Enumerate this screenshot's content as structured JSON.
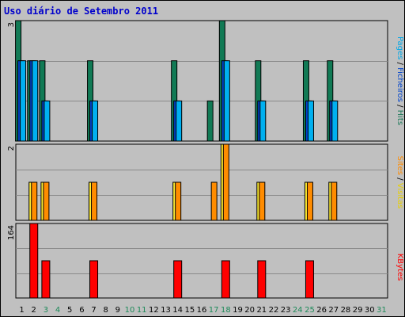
{
  "title": "Uso diário de Setembro 2011",
  "panel_labels": {
    "top": [
      {
        "text": "Pages",
        "color": "#00a8e8"
      },
      {
        "text": " / ",
        "color": "#000000"
      },
      {
        "text": "Ficheiros",
        "color": "#0044cc"
      },
      {
        "text": " / ",
        "color": "#000000"
      },
      {
        "text": "Hits",
        "color": "#1e7a5a"
      }
    ],
    "middle": [
      {
        "text": "Sites",
        "color": "#ff8c00"
      },
      {
        "text": " / ",
        "color": "#000000"
      },
      {
        "text": "Visitas",
        "color": "#e8d000"
      }
    ],
    "bottom": [
      {
        "text": "KBytes",
        "color": "#ff0000"
      }
    ]
  },
  "colors": {
    "hits": "#117a55",
    "files": "#0044cc",
    "pages": "#00b0f0",
    "visits": "#ffee33",
    "sites": "#ff8c00",
    "kbytes": "#ff0000",
    "weekend_label": "#1e8a5a",
    "weekday_label": "#000000"
  },
  "chart_data": [
    {
      "type": "bar",
      "panel": "top",
      "ymax_label": "3",
      "ylim": [
        0,
        3
      ],
      "categories": [
        "1",
        "2",
        "3",
        "4",
        "5",
        "6",
        "7",
        "8",
        "9",
        "10",
        "11",
        "12",
        "13",
        "14",
        "15",
        "16",
        "17",
        "18",
        "19",
        "20",
        "21",
        "22",
        "23",
        "24",
        "25",
        "26",
        "27",
        "28",
        "29",
        "30",
        "31"
      ],
      "weekend_days": [
        "3",
        "4",
        "10",
        "11",
        "17",
        "18",
        "24",
        "25",
        "31"
      ],
      "series": [
        {
          "name": "Hits",
          "values": [
            3,
            2,
            2,
            0,
            0,
            0,
            2,
            0,
            0,
            0,
            0,
            0,
            0,
            2,
            0,
            0,
            1,
            3,
            0,
            0,
            2,
            0,
            0,
            0,
            2,
            0,
            2,
            0,
            0,
            0,
            0
          ]
        },
        {
          "name": "Ficheiros",
          "values": [
            2,
            2,
            1,
            0,
            0,
            0,
            1,
            0,
            0,
            0,
            0,
            0,
            0,
            1,
            0,
            0,
            0,
            2,
            0,
            0,
            1,
            0,
            0,
            0,
            1,
            0,
            1,
            0,
            0,
            0,
            0
          ]
        },
        {
          "name": "Pages",
          "values": [
            2,
            2,
            1,
            0,
            0,
            0,
            1,
            0,
            0,
            0,
            0,
            0,
            0,
            1,
            0,
            0,
            0,
            2,
            0,
            0,
            1,
            0,
            0,
            0,
            1,
            0,
            1,
            0,
            0,
            0,
            0
          ]
        }
      ]
    },
    {
      "type": "bar",
      "panel": "middle",
      "ymax_label": "2",
      "ylim": [
        0,
        2
      ],
      "categories": [
        "1",
        "2",
        "3",
        "4",
        "5",
        "6",
        "7",
        "8",
        "9",
        "10",
        "11",
        "12",
        "13",
        "14",
        "15",
        "16",
        "17",
        "18",
        "19",
        "20",
        "21",
        "22",
        "23",
        "24",
        "25",
        "26",
        "27",
        "28",
        "29",
        "30",
        "31"
      ],
      "series": [
        {
          "name": "Visitas",
          "values": [
            0,
            1,
            1,
            0,
            0,
            0,
            1,
            0,
            0,
            0,
            0,
            0,
            0,
            1,
            0,
            0,
            0,
            2,
            0,
            0,
            1,
            0,
            0,
            0,
            1,
            0,
            1,
            0,
            0,
            0,
            0
          ]
        },
        {
          "name": "Sites",
          "values": [
            0,
            1,
            1,
            0,
            0,
            0,
            1,
            0,
            0,
            0,
            0,
            0,
            0,
            1,
            0,
            0,
            1,
            2,
            0,
            0,
            1,
            0,
            0,
            0,
            1,
            0,
            1,
            0,
            0,
            0,
            0
          ]
        }
      ]
    },
    {
      "type": "bar",
      "panel": "bottom",
      "ymax_label": "164",
      "ylim": [
        0,
        164
      ],
      "categories": [
        "1",
        "2",
        "3",
        "4",
        "5",
        "6",
        "7",
        "8",
        "9",
        "10",
        "11",
        "12",
        "13",
        "14",
        "15",
        "16",
        "17",
        "18",
        "19",
        "20",
        "21",
        "22",
        "23",
        "24",
        "25",
        "26",
        "27",
        "28",
        "29",
        "30",
        "31"
      ],
      "series": [
        {
          "name": "KBytes",
          "values": [
            0,
            164,
            82,
            0,
            0,
            0,
            82,
            0,
            0,
            0,
            0,
            0,
            0,
            82,
            0,
            0,
            0,
            82,
            0,
            0,
            82,
            0,
            0,
            0,
            82,
            0,
            0,
            0,
            0,
            0,
            0
          ]
        }
      ]
    }
  ]
}
